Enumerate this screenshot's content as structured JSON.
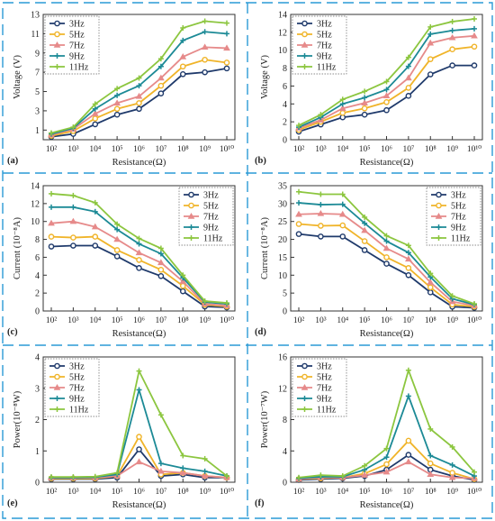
{
  "figure": {
    "frame_color": "#2a9ad6",
    "legend": [
      "3Hz",
      "5Hz",
      "7Hz",
      "9Hz",
      "11Hz"
    ],
    "colors": [
      "#1f3a6b",
      "#f0b429",
      "#e68a8a",
      "#1c8a96",
      "#8cc63f"
    ],
    "marker_names": [
      "circle",
      "circle",
      "triangle",
      "plus",
      "plus"
    ]
  },
  "chart_data": [
    {
      "type": "line",
      "panel_label": "(a)",
      "xlabel": "Resistance(Ω)",
      "ylabel": "Voltage (V)",
      "x_ticks": [
        "10²",
        "10³",
        "10⁴",
        "10⁵",
        "10⁶",
        "10⁷",
        "10⁸",
        "10⁹",
        "10¹⁰"
      ],
      "ylim": [
        0,
        13
      ],
      "y_ticks": [
        1,
        3,
        5,
        7,
        9,
        11,
        13
      ],
      "legend_position": "top-left",
      "series": [
        {
          "name": "3Hz",
          "values": [
            0.3,
            0.6,
            1.6,
            2.6,
            3.2,
            4.8,
            6.8,
            7.0,
            7.4
          ]
        },
        {
          "name": "5Hz",
          "values": [
            0.4,
            0.9,
            2.2,
            3.2,
            3.8,
            5.6,
            7.6,
            8.3,
            8.0
          ]
        },
        {
          "name": "7Hz",
          "values": [
            0.5,
            1.1,
            2.7,
            3.8,
            4.5,
            6.4,
            8.6,
            9.6,
            9.5
          ]
        },
        {
          "name": "9Hz",
          "values": [
            0.6,
            1.2,
            3.2,
            4.6,
            5.6,
            7.6,
            10.3,
            11.2,
            11.0
          ]
        },
        {
          "name": "11Hz",
          "values": [
            0.7,
            1.3,
            3.7,
            5.3,
            6.4,
            8.4,
            11.6,
            12.3,
            12.1
          ]
        }
      ]
    },
    {
      "type": "line",
      "panel_label": "(b)",
      "xlabel": "Resistance(Ω)",
      "ylabel": "Voltage (V)",
      "x_ticks": [
        "10²",
        "10³",
        "10⁴",
        "10⁵",
        "10⁶",
        "10⁷",
        "10⁸",
        "10⁹",
        "10¹⁰"
      ],
      "ylim": [
        0,
        14
      ],
      "y_ticks": [
        0,
        2,
        4,
        6,
        8,
        10,
        12,
        14
      ],
      "legend_position": "top-left",
      "series": [
        {
          "name": "3Hz",
          "values": [
            0.9,
            1.7,
            2.5,
            2.8,
            3.3,
            4.9,
            7.3,
            8.3,
            8.3
          ]
        },
        {
          "name": "5Hz",
          "values": [
            1.1,
            2.0,
            3.0,
            3.5,
            4.2,
            5.8,
            9.0,
            10.1,
            10.4
          ]
        },
        {
          "name": "7Hz",
          "values": [
            1.3,
            2.2,
            3.5,
            4.1,
            4.9,
            6.9,
            10.8,
            11.4,
            11.6
          ]
        },
        {
          "name": "9Hz",
          "values": [
            1.4,
            2.5,
            4.0,
            4.7,
            5.6,
            8.2,
            11.8,
            12.2,
            12.4
          ]
        },
        {
          "name": "11Hz",
          "values": [
            1.6,
            2.8,
            4.5,
            5.4,
            6.5,
            9.2,
            12.6,
            13.2,
            13.5
          ]
        }
      ]
    },
    {
      "type": "line",
      "panel_label": "(c)",
      "xlabel": "Resistance(Ω)",
      "ylabel": "Current (10⁻⁸A)",
      "x_ticks": [
        "10²",
        "10³",
        "10⁴",
        "10⁵",
        "10⁶",
        "10⁷",
        "10⁸",
        "10⁹",
        "10¹⁰"
      ],
      "ylim": [
        0,
        14
      ],
      "y_ticks": [
        0,
        2,
        4,
        6,
        8,
        10,
        12,
        14
      ],
      "legend_position": "top-right",
      "series": [
        {
          "name": "3Hz",
          "values": [
            7.2,
            7.3,
            7.3,
            6.1,
            4.8,
            3.9,
            2.2,
            0.5,
            0.4
          ]
        },
        {
          "name": "5Hz",
          "values": [
            8.3,
            8.2,
            8.3,
            6.8,
            5.7,
            4.6,
            2.8,
            0.7,
            0.5
          ]
        },
        {
          "name": "7Hz",
          "values": [
            9.8,
            10.0,
            9.4,
            8.0,
            6.5,
            5.4,
            3.3,
            0.8,
            0.6
          ]
        },
        {
          "name": "9Hz",
          "values": [
            11.6,
            11.6,
            11.1,
            9.1,
            7.5,
            6.4,
            3.7,
            1.0,
            0.8
          ]
        },
        {
          "name": "11Hz",
          "values": [
            13.1,
            12.9,
            12.1,
            9.7,
            8.1,
            7.0,
            4.0,
            1.1,
            0.9
          ]
        }
      ]
    },
    {
      "type": "line",
      "panel_label": "(d)",
      "xlabel": "Resistance(Ω)",
      "ylabel": "Current (10⁻⁸A)",
      "x_ticks": [
        "10²",
        "10³",
        "10⁴",
        "10⁵",
        "10⁶",
        "10⁷",
        "10⁸",
        "10⁹",
        "10¹⁰"
      ],
      "ylim": [
        0,
        35
      ],
      "y_ticks": [
        0,
        5,
        10,
        15,
        20,
        25,
        30,
        35
      ],
      "legend_position": "top-right",
      "series": [
        {
          "name": "3Hz",
          "values": [
            21.5,
            20.8,
            20.8,
            17.0,
            13.2,
            10.0,
            5.2,
            1.2,
            0.9
          ]
        },
        {
          "name": "5Hz",
          "values": [
            24.3,
            23.8,
            23.9,
            19.5,
            15.0,
            12.0,
            6.6,
            1.8,
            1.2
          ]
        },
        {
          "name": "7Hz",
          "values": [
            27.0,
            27.2,
            27.0,
            22.5,
            17.5,
            14.5,
            8.0,
            2.6,
            1.5
          ]
        },
        {
          "name": "9Hz",
          "values": [
            30.2,
            29.7,
            29.8,
            24.5,
            19.5,
            16.3,
            9.5,
            3.4,
            1.8
          ]
        },
        {
          "name": "11Hz",
          "values": [
            33.3,
            32.6,
            32.6,
            26.2,
            21.0,
            18.3,
            10.5,
            4.2,
            2.0
          ]
        }
      ]
    },
    {
      "type": "line",
      "panel_label": "(e)",
      "xlabel": "Resistance(Ω)",
      "ylabel": "Power(10⁻⁸W)",
      "x_ticks": [
        "10²",
        "10³",
        "10⁴",
        "10⁵",
        "10⁶",
        "10⁷",
        "10⁸",
        "10⁹",
        "10¹⁰"
      ],
      "ylim": [
        0,
        4
      ],
      "y_ticks": [
        0,
        1,
        2,
        3,
        4
      ],
      "legend_position": "top-left",
      "series": [
        {
          "name": "3Hz",
          "values": [
            0.1,
            0.1,
            0.1,
            0.15,
            1.05,
            0.2,
            0.25,
            0.15,
            0.15
          ]
        },
        {
          "name": "5Hz",
          "values": [
            0.12,
            0.12,
            0.12,
            0.2,
            1.45,
            0.25,
            0.3,
            0.2,
            0.15
          ]
        },
        {
          "name": "7Hz",
          "values": [
            0.14,
            0.14,
            0.14,
            0.2,
            0.65,
            0.35,
            0.3,
            0.2,
            0.15
          ]
        },
        {
          "name": "9Hz",
          "values": [
            0.15,
            0.15,
            0.16,
            0.25,
            2.95,
            0.6,
            0.45,
            0.35,
            0.2
          ]
        },
        {
          "name": "11Hz",
          "values": [
            0.17,
            0.17,
            0.18,
            0.3,
            3.55,
            2.15,
            0.85,
            0.75,
            0.2
          ]
        }
      ]
    },
    {
      "type": "line",
      "panel_label": "(f)",
      "xlabel": "Resistance(Ω)",
      "ylabel": "Power(10⁻⁷W)",
      "x_ticks": [
        "10²",
        "10³",
        "10⁴",
        "10⁵",
        "10⁶",
        "10⁷",
        "10⁸",
        "10⁹",
        "10¹⁰"
      ],
      "ylim": [
        0,
        16
      ],
      "y_ticks": [
        0,
        4,
        8,
        12,
        16
      ],
      "legend_position": "top-left",
      "series": [
        {
          "name": "3Hz",
          "values": [
            0.3,
            0.4,
            0.5,
            0.8,
            1.6,
            3.5,
            1.6,
            0.8,
            0.3
          ]
        },
        {
          "name": "5Hz",
          "values": [
            0.4,
            0.5,
            0.6,
            1.1,
            2.3,
            5.3,
            2.4,
            1.2,
            0.4
          ]
        },
        {
          "name": "7Hz",
          "values": [
            0.4,
            0.6,
            0.6,
            0.9,
            1.3,
            2.6,
            1.0,
            0.6,
            0.5
          ]
        },
        {
          "name": "9Hz",
          "values": [
            0.5,
            0.7,
            0.7,
            1.6,
            3.2,
            11.0,
            3.4,
            2.2,
            0.8
          ]
        },
        {
          "name": "11Hz",
          "values": [
            0.6,
            0.9,
            0.8,
            2.1,
            4.3,
            14.3,
            6.8,
            4.5,
            1.3
          ]
        }
      ]
    }
  ]
}
